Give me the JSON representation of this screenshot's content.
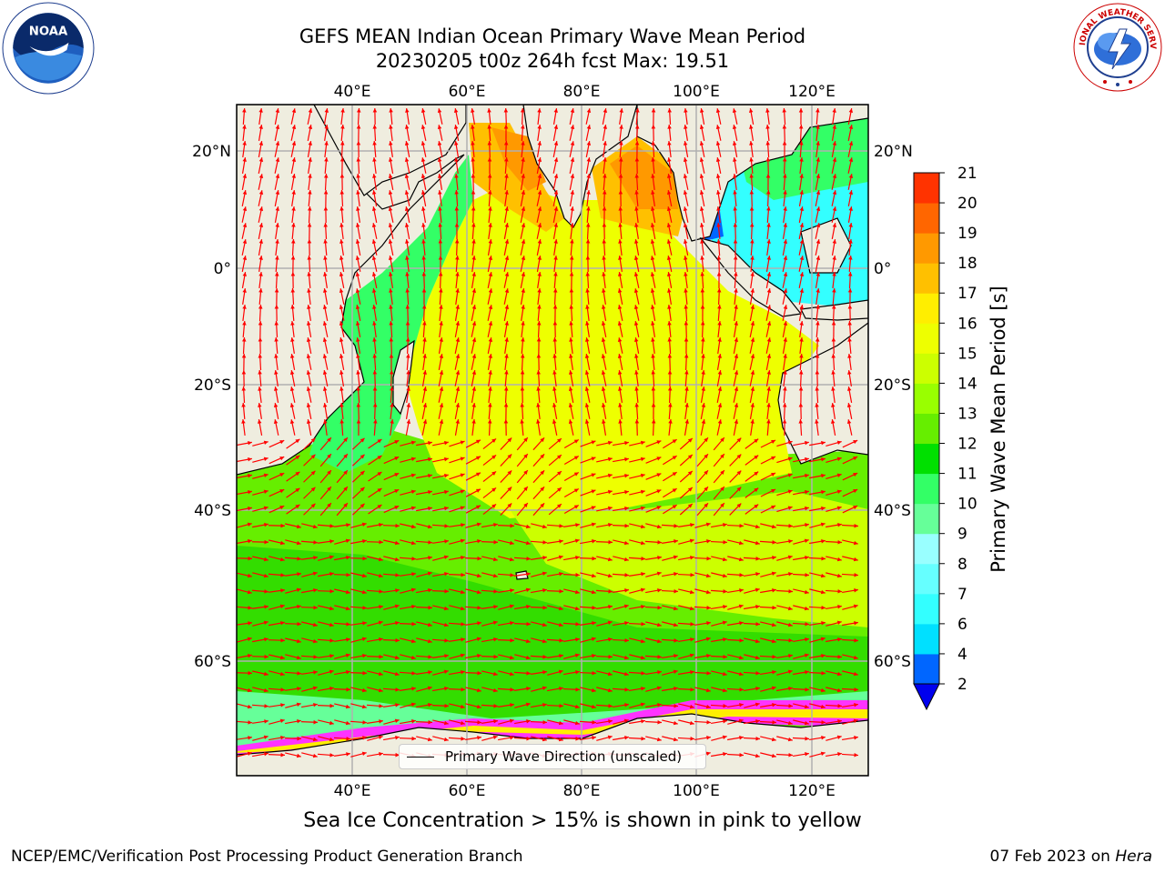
{
  "title": {
    "line1": "GEFS MEAN Indian Ocean Primary Wave Mean Period",
    "line2": "20230205 t00z 264h fcst   Max: 19.51"
  },
  "logos": {
    "noaa": {
      "icon": "noaa-logo",
      "text": "NOAA"
    },
    "nws": {
      "icon": "nws-logo",
      "text": "NATIONAL WEATHER SERVICE"
    }
  },
  "map": {
    "lon_ticks": [
      "40°E",
      "60°E",
      "80°E",
      "100°E",
      "120°E"
    ],
    "lat_ticks": [
      "20°N",
      "0°",
      "20°S",
      "40°S",
      "60°S"
    ],
    "colors": {
      "land": "#efeddf",
      "vector": "#ff0000",
      "grid": "#b0b0b0",
      "ice": "#ff33ff"
    }
  },
  "colorbar": {
    "title": "Primary Wave Mean Period [s]",
    "levels": [
      "2",
      "4",
      "6",
      "7",
      "8",
      "9",
      "10",
      "11",
      "12",
      "13",
      "14",
      "15",
      "16",
      "17",
      "18",
      "19",
      "20",
      "21"
    ],
    "labels": [
      "2",
      "4",
      "6",
      "7",
      "8",
      "9",
      "10",
      "11",
      "12",
      "13",
      "14",
      "15",
      "16",
      "17",
      "18",
      "19",
      "20",
      "21"
    ],
    "colors": [
      "#0066ff",
      "#00e0ff",
      "#33ffff",
      "#66ffff",
      "#99ffff",
      "#66ff99",
      "#33ff66",
      "#00e000",
      "#66ee00",
      "#99ff00",
      "#ccff00",
      "#eeff00",
      "#ffee00",
      "#ffc000",
      "#ff9900",
      "#ff6600",
      "#ff3300",
      "#ff0000"
    ],
    "extend_color": "#0000ee"
  },
  "legend": {
    "label": "Primary Wave Direction (unscaled)"
  },
  "subtitle": "Sea Ice Concentration > 15% is shown in pink to yellow",
  "footer": {
    "left": "NCEP/EMC/Verification Post Processing Product Generation Branch",
    "right_prefix": "07 Feb 2023 on ",
    "right_machine": "Hera"
  }
}
